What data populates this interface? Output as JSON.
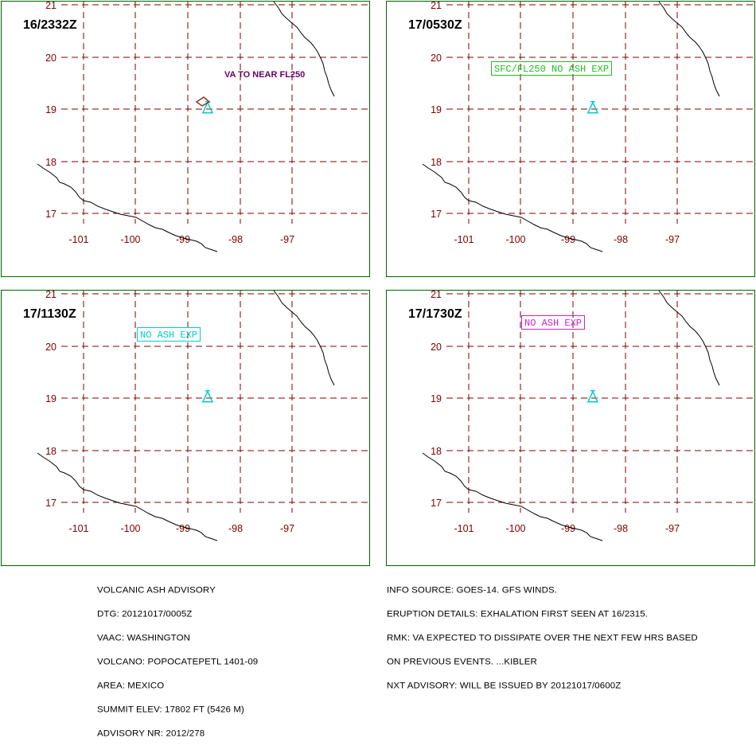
{
  "colors": {
    "frame": "#006400",
    "grid": "#800000",
    "tick_label": "#800000",
    "coast": "#000000",
    "volcano": "#00CCCC",
    "ash_polygon": "#8B3A2A",
    "annotation_purple": "#660066",
    "annotation_green": "#22BB22",
    "annotation_cyan": "#00CCCC",
    "annotation_magenta": "#CC22CC"
  },
  "map_panels": [
    {
      "valid_time": "16/2332Z",
      "annotation": {
        "text": "VA TO NEAR FL250",
        "boxed": false,
        "color_key": "annotation_purple"
      },
      "show_ash_polygon": true
    },
    {
      "valid_time": "17/0530Z",
      "annotation": {
        "text": "SFC/FL250 NO ASH EXP",
        "boxed": true,
        "color_key": "annotation_green"
      },
      "show_ash_polygon": false
    },
    {
      "valid_time": "17/1130Z",
      "annotation": {
        "text": "NO ASH EXP",
        "boxed": true,
        "color_key": "annotation_cyan"
      },
      "show_ash_polygon": false
    },
    {
      "valid_time": "17/1730Z",
      "annotation": {
        "text": "NO ASH EXP",
        "boxed": true,
        "color_key": "annotation_magenta"
      },
      "show_ash_polygon": false
    }
  ],
  "grid": {
    "longitudes": [
      -101,
      -100,
      -99,
      -98,
      -97
    ],
    "latitudes": [
      21,
      20,
      19,
      18,
      17
    ],
    "lon_labels": [
      "-101",
      "-100",
      "-99",
      "-98",
      "-97"
    ],
    "lat_labels": [
      "21",
      "20",
      "19",
      "18",
      "17"
    ]
  },
  "volcano_location": {
    "lon": -98.62,
    "lat": 19.02
  },
  "advisory_left": [
    "VOLCANIC ASH ADVISORY",
    "DTG: 20121017/0005Z",
    "VAAC: WASHINGTON",
    "VOLCANO: POPOCATEPETL 1401-09",
    "AREA: MEXICO",
    "SUMMIT ELEV: 17802 FT (5426 M)",
    "ADVISORY NR: 2012/278"
  ],
  "advisory_right": [
    "INFO SOURCE: GOES-14. GFS WINDS.",
    "ERUPTION DETAILS: EXHALATION FIRST SEEN AT 16/2315.",
    "RMK: VA EXPECTED TO DISSIPATE OVER THE NEXT FEW HRS BASED",
    "ON PREVIOUS EVENTS. ...KIBLER",
    "NXT ADVISORY: WILL BE ISSUED BY 20121017/0600Z"
  ]
}
